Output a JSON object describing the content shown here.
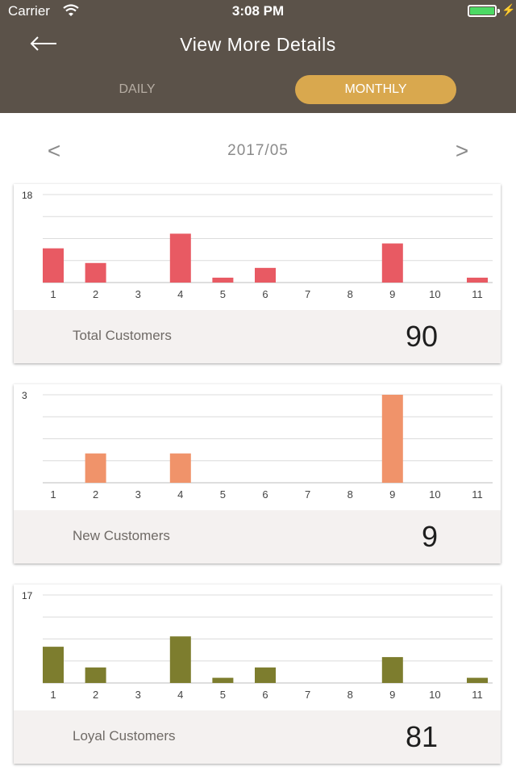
{
  "status_bar": {
    "carrier": "Carrier",
    "time": "3:08 PM"
  },
  "header": {
    "title": "View More Details"
  },
  "tabs": {
    "daily": "DAILY",
    "monthly": "MONTHLY",
    "selected": "monthly"
  },
  "period": {
    "label": "2017/05",
    "prev": "<",
    "next": ">"
  },
  "chart_data": [
    {
      "type": "bar",
      "categories": [
        "1",
        "2",
        "3",
        "4",
        "5",
        "6",
        "7",
        "8",
        "9",
        "10",
        "11"
      ],
      "values": [
        7,
        4,
        0,
        10,
        1,
        3,
        0,
        0,
        8,
        0,
        1
      ],
      "ylim": [
        0,
        18
      ],
      "ytick_label": "18",
      "color": "#e85a63",
      "label": "Total Customers",
      "total": "90"
    },
    {
      "type": "bar",
      "categories": [
        "1",
        "2",
        "3",
        "4",
        "5",
        "6",
        "7",
        "8",
        "9",
        "10",
        "11"
      ],
      "values": [
        0,
        1,
        0,
        1,
        0,
        0,
        0,
        0,
        3,
        0,
        0
      ],
      "ylim": [
        0,
        3
      ],
      "ytick_label": "3",
      "color": "#f0936a",
      "label": "New Customers",
      "total": "9"
    },
    {
      "type": "bar",
      "categories": [
        "1",
        "2",
        "3",
        "4",
        "5",
        "6",
        "7",
        "8",
        "9",
        "10",
        "11"
      ],
      "values": [
        7,
        3,
        0,
        9,
        1,
        3,
        0,
        0,
        5,
        0,
        1
      ],
      "ylim": [
        0,
        17
      ],
      "ytick_label": "17",
      "color": "#7d7d2e",
      "label": "Loyal Customers",
      "total": "81"
    }
  ]
}
